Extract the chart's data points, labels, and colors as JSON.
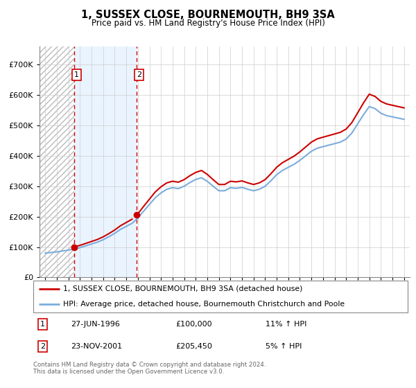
{
  "title": "1, SUSSEX CLOSE, BOURNEMOUTH, BH9 3SA",
  "subtitle": "Price paid vs. HM Land Registry's House Price Index (HPI)",
  "legend_line1": "1, SUSSEX CLOSE, BOURNEMOUTH, BH9 3SA (detached house)",
  "legend_line2": "HPI: Average price, detached house, Bournemouth Christchurch and Poole",
  "footnote": "Contains HM Land Registry data © Crown copyright and database right 2024.\nThis data is licensed under the Open Government Licence v3.0.",
  "sale1_date_num": 1996.49,
  "sale1_label": "27-JUN-1996",
  "sale1_price": 100000,
  "sale1_hpi_pct": "11% ↑ HPI",
  "sale2_date_num": 2001.9,
  "sale2_label": "23-NOV-2001",
  "sale2_price": 205450,
  "sale2_hpi_pct": "5% ↑ HPI",
  "hpi_color": "#7aaddc",
  "price_color": "#cc0000",
  "shaded_color": "#ddeeff",
  "ylim": [
    0,
    730000
  ],
  "yticks": [
    0,
    100000,
    200000,
    300000,
    400000,
    500000,
    600000,
    700000
  ],
  "xlim_start": 1993.5,
  "xlim_end": 2025.5,
  "hpi_years": [
    1994.0,
    1994.5,
    1995.0,
    1995.5,
    1996.0,
    1996.5,
    1997.0,
    1997.5,
    1998.0,
    1998.5,
    1999.0,
    1999.5,
    2000.0,
    2000.5,
    2001.0,
    2001.5,
    2002.0,
    2002.5,
    2003.0,
    2003.5,
    2004.0,
    2004.5,
    2005.0,
    2005.5,
    2006.0,
    2006.5,
    2007.0,
    2007.5,
    2008.0,
    2008.5,
    2009.0,
    2009.5,
    2010.0,
    2010.5,
    2011.0,
    2011.5,
    2012.0,
    2012.5,
    2013.0,
    2013.5,
    2014.0,
    2014.5,
    2015.0,
    2015.5,
    2016.0,
    2016.5,
    2017.0,
    2017.5,
    2018.0,
    2018.5,
    2019.0,
    2019.5,
    2020.0,
    2020.5,
    2021.0,
    2021.5,
    2022.0,
    2022.5,
    2023.0,
    2023.5,
    2024.0,
    2024.5,
    2025.0
  ],
  "hpi_values": [
    80000,
    82000,
    84000,
    87000,
    90000,
    93000,
    98000,
    104000,
    110000,
    116000,
    124000,
    134000,
    145000,
    158000,
    168000,
    178000,
    195000,
    218000,
    240000,
    262000,
    278000,
    290000,
    295000,
    292000,
    300000,
    312000,
    322000,
    328000,
    316000,
    300000,
    285000,
    285000,
    295000,
    293000,
    296000,
    290000,
    285000,
    290000,
    300000,
    318000,
    338000,
    352000,
    362000,
    372000,
    385000,
    400000,
    415000,
    425000,
    430000,
    435000,
    440000,
    445000,
    455000,
    475000,
    505000,
    535000,
    562000,
    555000,
    540000,
    532000,
    528000,
    524000,
    520000
  ]
}
